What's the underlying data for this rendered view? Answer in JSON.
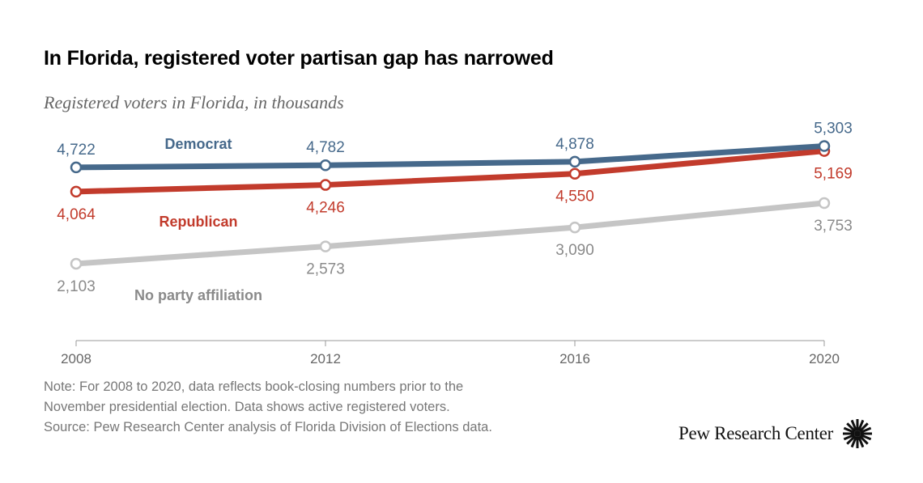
{
  "chart_data": {
    "type": "line",
    "title": "In Florida, registered voter partisan gap has narrowed",
    "subtitle": "Registered voters in Florida, in thousands",
    "x": [
      2008,
      2012,
      2016,
      2020
    ],
    "xtick_labels": [
      "2008",
      "2012",
      "2016",
      "2020"
    ],
    "ylim": [
      0,
      5400
    ],
    "grid": false,
    "series": [
      {
        "name": "Democrat",
        "color": "#46698b",
        "values": [
          4722,
          4782,
          4878,
          5303
        ],
        "labels": [
          "4,722",
          "4,782",
          "4,878",
          "5,303"
        ]
      },
      {
        "name": "Republican",
        "color": "#c23b2c",
        "values": [
          4064,
          4246,
          4550,
          5169
        ],
        "labels": [
          "4,064",
          "4,246",
          "4,550",
          "5,169"
        ]
      },
      {
        "name": "No party affiliation",
        "color": "#c5c5c5",
        "label_color": "#8a8a8a",
        "values": [
          2103,
          2573,
          3090,
          3753
        ],
        "labels": [
          "2,103",
          "2,573",
          "3,090",
          "3,753"
        ]
      }
    ]
  },
  "notes": {
    "line1": "Note: For 2008 to 2020, data reflects book-closing numbers prior to the",
    "line2": "November presidential election. Data shows active registered voters.",
    "source": "Source: Pew Research Center analysis of Florida Division of Elections data."
  },
  "logo": {
    "text": "Pew Research Center"
  }
}
